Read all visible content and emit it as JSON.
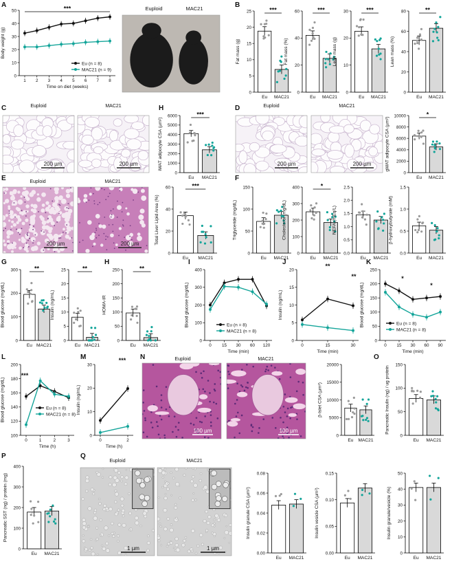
{
  "colors": {
    "eu": "#111111",
    "mac": "#14a59a",
    "euDot": "#9a9a9a",
    "bar_mac": "#d9d9d9"
  },
  "panel_letters": [
    "A",
    "B",
    "C",
    "D",
    "E",
    "F",
    "G",
    "H",
    "I",
    "J",
    "K",
    "L",
    "M",
    "N",
    "O",
    "P",
    "Q"
  ],
  "photos": {
    "mouse": [
      "Euploid",
      "MAC21"
    ],
    "C": {
      "labels": [
        "Euploid",
        "MAC21"
      ],
      "scale": "200 µm"
    },
    "D": {
      "labels": [
        "Euploid",
        "MAC21"
      ],
      "scale": "200 µm"
    },
    "E": {
      "labels": [
        "Euploid",
        "MAC21"
      ],
      "scale": "200 µm"
    },
    "N": {
      "labels": [
        "Euploid",
        "MAC21"
      ],
      "scale": "100 µm"
    },
    "Q": {
      "labels": [
        "Euploid",
        "MAC21"
      ],
      "scale": "1 µm"
    }
  },
  "chart_data": [
    {
      "id": "A",
      "type": "line",
      "ylabel": "Body weight (g)",
      "xlabel": "Time on diet (weeks)",
      "x": [
        1,
        2,
        3,
        4,
        5,
        6,
        7,
        8
      ],
      "ylim": [
        0,
        50
      ],
      "yticks": [
        0,
        10,
        20,
        30,
        40,
        50
      ],
      "xticks": [
        "1",
        "2",
        "3",
        "4",
        "5",
        "6",
        "7",
        "8"
      ],
      "series": [
        {
          "name": "Eu (n = 8)",
          "values": [
            32.5,
            34.5,
            37,
            39.5,
            40,
            42,
            44,
            45
          ]
        },
        {
          "name": "MAC21 (n = 9)",
          "values": [
            22,
            22,
            23,
            24,
            24.5,
            25.5,
            26,
            26.5
          ]
        }
      ],
      "annotations": [
        "***"
      ],
      "legend": "bottom-right"
    },
    {
      "id": "B1",
      "type": "bar",
      "ylabel": "Fat mass (g)",
      "categories": [
        "Eu",
        "MAC21"
      ],
      "values": [
        18.8,
        7
      ],
      "ylim": [
        0,
        25
      ],
      "yticks": [
        0,
        5,
        10,
        15,
        20,
        25
      ],
      "annotations": [
        "***"
      ]
    },
    {
      "id": "B2",
      "type": "bar",
      "ylabel": "Fat mass (%)",
      "categories": [
        "Eu",
        "MAC21"
      ],
      "values": [
        42,
        25
      ],
      "ylim": [
        0,
        60
      ],
      "yticks": [
        0,
        20,
        40,
        60
      ],
      "annotations": [
        "***"
      ]
    },
    {
      "id": "B3",
      "type": "bar",
      "ylabel": "Lean mass (g)",
      "categories": [
        "Eu",
        "MAC21"
      ],
      "values": [
        22.5,
        16
      ],
      "ylim": [
        0,
        30
      ],
      "yticks": [
        0,
        10,
        20,
        30
      ],
      "annotations": [
        "***"
      ]
    },
    {
      "id": "B4",
      "type": "bar",
      "ylabel": "Lean mass (%)",
      "categories": [
        "Eu",
        "MAC21"
      ],
      "values": [
        51,
        63
      ],
      "ylim": [
        0,
        80
      ],
      "yticks": [
        0,
        20,
        40,
        60,
        80
      ],
      "annotations": [
        "**"
      ]
    },
    {
      "id": "H",
      "type": "bar",
      "ylabel": "iWAT adipocyte CSA (µm²)",
      "categories": [
        "Eu",
        "MAC21"
      ],
      "values": [
        4100,
        2400
      ],
      "ylim": [
        0,
        6000
      ],
      "yticks": [
        0,
        1000,
        2000,
        3000,
        4000,
        5000,
        6000
      ],
      "annotations": [
        "***"
      ]
    },
    {
      "id": "D",
      "type": "bar",
      "ylabel": "gWAT adipocyte CSA (µm²)",
      "categories": [
        "Eu",
        "MAC21"
      ],
      "values": [
        6400,
        4500
      ],
      "ylim": [
        0,
        10000
      ],
      "yticks": [
        0,
        2000,
        4000,
        6000,
        8000,
        10000
      ],
      "annotations": [
        "*"
      ]
    },
    {
      "id": "E",
      "type": "bar",
      "ylabel": "Total Liver Lipid Area (%)",
      "categories": [
        "Eu",
        "MAC21"
      ],
      "values": [
        34,
        16
      ],
      "ylim": [
        0,
        60
      ],
      "yticks": [
        0,
        20,
        40,
        60
      ],
      "annotations": [
        "***"
      ]
    },
    {
      "id": "F1",
      "type": "bar",
      "ylabel": "Triglyceride (mg/dL)",
      "categories": [
        "Eu",
        "MAC21"
      ],
      "values": [
        72,
        86
      ],
      "ylim": [
        0,
        150
      ],
      "yticks": [
        0,
        50,
        100,
        150
      ],
      "annotations": []
    },
    {
      "id": "F2",
      "type": "bar",
      "ylabel": "Cholesterol (mg/dL)",
      "categories": [
        "Eu",
        "MAC21"
      ],
      "values": [
        250,
        185
      ],
      "ylim": [
        0,
        400
      ],
      "yticks": [
        0,
        100,
        200,
        300,
        400
      ],
      "annotations": [
        "*"
      ]
    },
    {
      "id": "F3",
      "type": "bar",
      "ylabel": "NEFA (mEq/L)",
      "categories": [
        "Eu",
        "MAC21"
      ],
      "values": [
        1.45,
        1.25
      ],
      "ylim": [
        0,
        2.5
      ],
      "yticks": [
        "0.0",
        "0.5",
        "1.0",
        "1.5",
        "2.0",
        "2.5"
      ],
      "annotations": []
    },
    {
      "id": "F4",
      "type": "bar",
      "ylabel": "β-hydroxybutyrate (mM)",
      "categories": [
        "Eu",
        "MAC21"
      ],
      "values": [
        0.62,
        0.52
      ],
      "ylim": [
        0,
        1.5
      ],
      "yticks": [
        "0.0",
        "0.5",
        "1.0",
        "1.5"
      ],
      "annotations": []
    },
    {
      "id": "G1",
      "type": "bar",
      "ylabel": "Blood glucose (mg/dL)",
      "categories": [
        "Eu",
        "MAC21"
      ],
      "values": [
        195,
        133
      ],
      "ylim": [
        0,
        300
      ],
      "yticks": [
        0,
        100,
        200,
        300
      ],
      "annotations": [
        "**"
      ]
    },
    {
      "id": "G2",
      "type": "bar",
      "ylabel": "Insulin (ng/mL)",
      "categories": [
        "Eu",
        "MAC21"
      ],
      "values": [
        8.2,
        1.1
      ],
      "ylim": [
        0,
        25
      ],
      "yticks": [
        0,
        5,
        10,
        15,
        20,
        25
      ],
      "annotations": [
        "**"
      ]
    },
    {
      "id": "H2",
      "type": "bar",
      "ylabel": "HOMA-IR",
      "categories": [
        "Eu",
        "MAC21"
      ],
      "values": [
        97,
        10
      ],
      "ylim": [
        0,
        250
      ],
      "yticks": [
        0,
        50,
        100,
        150,
        200,
        250
      ],
      "annotations": [
        "**"
      ]
    },
    {
      "id": "I",
      "type": "line",
      "ylabel": "Blood glucose (mg/dL)",
      "xlabel": "Time (min)",
      "x": [
        0,
        15,
        30,
        60,
        120
      ],
      "ylim": [
        0,
        400
      ],
      "yticks": [
        0,
        100,
        200,
        300,
        400
      ],
      "xticks": [
        "0",
        "15",
        "30",
        "60",
        "120"
      ],
      "series": [
        {
          "name": "Eu (n = 8)",
          "values": [
            200,
            325,
            345,
            345,
            195
          ]
        },
        {
          "name": "MAC21 (n = 8)",
          "values": [
            175,
            305,
            300,
            275,
            205
          ]
        }
      ],
      "annotations": [],
      "legend": "bottom"
    },
    {
      "id": "J",
      "type": "line",
      "ylabel": "Insulin (ng/mL)",
      "xlabel": "Time (min)",
      "x": [
        0,
        15,
        30
      ],
      "ylim": [
        0,
        20
      ],
      "yticks": [
        0,
        5,
        10,
        15,
        20
      ],
      "xticks": [
        "0",
        "15",
        "30"
      ],
      "series": [
        {
          "name": "Eu",
          "values": [
            5.8,
            11.7,
            9.8
          ]
        },
        {
          "name": "MAC21",
          "values": [
            4.5,
            3.6,
            2.8
          ]
        }
      ],
      "annotations": [
        "**",
        "**"
      ]
    },
    {
      "id": "K",
      "type": "line",
      "ylabel": "Blood glucose (mg/dL)",
      "xlabel": "Time (min)",
      "x": [
        0,
        15,
        30,
        60,
        90
      ],
      "ylim": [
        0,
        250
      ],
      "yticks": [
        0,
        50,
        100,
        150,
        200,
        250
      ],
      "xticks": [
        "0",
        "15",
        "30",
        "60",
        "90"
      ],
      "series": [
        {
          "name": "Eu (n = 8)",
          "values": [
            200,
            175,
            145,
            150,
            155
          ]
        },
        {
          "name": "MAC21 (n = 8)",
          "values": [
            170,
            118,
            92,
            82,
            100
          ]
        }
      ],
      "annotations": [
        "*",
        "*"
      ],
      "legend": "bottom-left"
    },
    {
      "id": "L",
      "type": "line",
      "ylabel": "Blood glucose (mg/dL)",
      "xlabel": "Time (h)",
      "x": [
        0,
        1,
        2,
        3
      ],
      "ylim": [
        100,
        200
      ],
      "yticks": [
        100,
        120,
        140,
        160,
        180,
        200
      ],
      "xticks": [
        "0",
        "1",
        "2",
        "3"
      ],
      "series": [
        {
          "name": "Eu (n = 8)",
          "values": [
            155,
            170,
            162,
            153
          ]
        },
        {
          "name": "MAC21 (n = 8)",
          "values": [
            115,
            177,
            158,
            155
          ]
        }
      ],
      "annotations": [
        "***"
      ],
      "legend": "bottom-right"
    },
    {
      "id": "M",
      "type": "line",
      "ylabel": "Insulin (ng/mL)",
      "xlabel": "Time (h)",
      "x": [
        0,
        2
      ],
      "ylim": [
        0,
        30
      ],
      "yticks": [
        0,
        10,
        20,
        30
      ],
      "xticks": [
        "0",
        "2"
      ],
      "series": [
        {
          "name": "Eu",
          "values": [
            6.3,
            19.8
          ]
        },
        {
          "name": "MAC21",
          "values": [
            1.2,
            3.8
          ]
        }
      ],
      "annotations": [
        "***"
      ]
    },
    {
      "id": "N",
      "type": "bar",
      "ylabel": "β-Islet CSA (µm²)",
      "categories": [
        "Eu",
        "MAC21"
      ],
      "values": [
        7700,
        7200
      ],
      "ylim": [
        0,
        20000
      ],
      "yticks": [
        0,
        5000,
        10000,
        15000,
        20000
      ],
      "annotations": []
    },
    {
      "id": "O",
      "type": "bar",
      "ylabel": "Pancreatic Insulin (ng) / ug protein",
      "categories": [
        "Eu",
        "MAC21"
      ],
      "values": [
        78,
        75
      ],
      "ylim": [
        0,
        150
      ],
      "yticks": [
        0,
        50,
        100,
        150
      ],
      "annotations": []
    },
    {
      "id": "P",
      "type": "bar",
      "ylabel": "Pancreatic SST (ng) / protein (mg)",
      "categories": [
        "Eu",
        "MAC21"
      ],
      "values": [
        178,
        183
      ],
      "ylim": [
        0,
        400
      ],
      "yticks": [
        0,
        100,
        200,
        300,
        400
      ],
      "annotations": []
    },
    {
      "id": "Q1",
      "type": "bar",
      "ylabel": "Insulin granule CSA (µm²)",
      "categories": [
        "Eu",
        "MAC21"
      ],
      "values": [
        0.048,
        0.049
      ],
      "ylim": [
        0,
        0.08
      ],
      "yticks": [
        "0.00",
        "0.02",
        "0.04",
        "0.06",
        "0.08"
      ],
      "annotations": []
    },
    {
      "id": "Q2",
      "type": "bar",
      "ylabel": "Insulin vesicle CSA (µm²)",
      "categories": [
        "Eu",
        "MAC21"
      ],
      "values": [
        0.094,
        0.122
      ],
      "ylim": [
        0,
        0.15
      ],
      "yticks": [
        "0.00",
        "0.05",
        "0.10",
        "0.15"
      ],
      "annotations": []
    },
    {
      "id": "Q3",
      "type": "bar",
      "ylabel": "Insulin granule/vesicle (%)",
      "categories": [
        "Eu",
        "MAC21"
      ],
      "values": [
        41,
        41
      ],
      "ylim": [
        0,
        50
      ],
      "yticks": [
        0,
        10,
        20,
        30,
        40,
        50
      ],
      "annotations": []
    }
  ]
}
